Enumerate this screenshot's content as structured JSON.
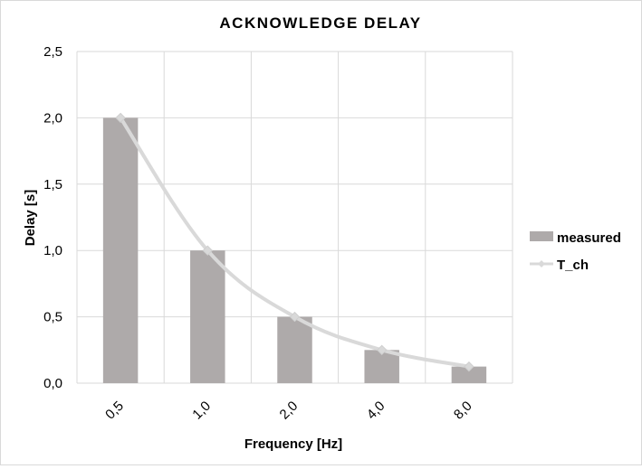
{
  "chart_data": {
    "type": "bar",
    "title": "ACKNOWLEDGE DELAY",
    "xlabel": "Frequency [Hz]",
    "ylabel": "Delay [s]",
    "categories": [
      "0,5",
      "1,0",
      "2,0",
      "4,0",
      "8,0"
    ],
    "ylim": [
      0,
      2.5
    ],
    "yticks": [
      "0,0",
      "0,5",
      "1,0",
      "1,5",
      "2,0",
      "2,5"
    ],
    "grid": true,
    "legend_position": "right",
    "series": [
      {
        "name": "measured",
        "kind": "bar",
        "values": [
          2.0,
          1.0,
          0.5,
          0.25,
          0.125
        ],
        "color": "#aeaaaa"
      },
      {
        "name": "T_ch",
        "kind": "line",
        "marker": "diamond",
        "values": [
          2.0,
          1.0,
          0.5,
          0.25,
          0.125
        ],
        "color": "#d9d9d9"
      }
    ]
  }
}
